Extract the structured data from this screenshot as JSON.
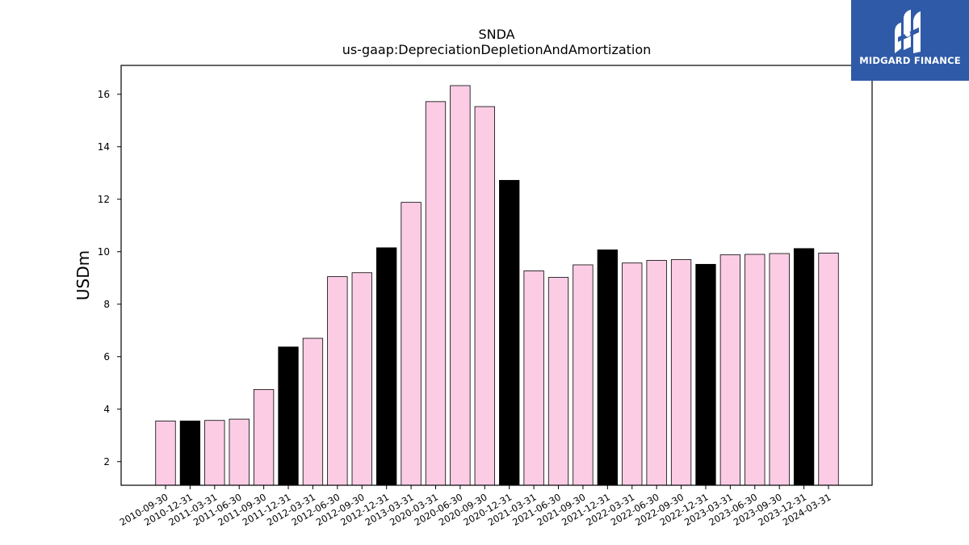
{
  "chart_data": {
    "type": "bar",
    "title": "SNDA",
    "subtitle": "us-gaap:DepreciationDepletionAndAmortization",
    "ylabel": "USDm",
    "xlabel": "",
    "ylim": [
      1.1,
      17.1
    ],
    "yticks": [
      2,
      4,
      6,
      8,
      10,
      12,
      14,
      16
    ],
    "categories": [
      "2010-09-30",
      "2010-12-31",
      "2011-03-31",
      "2011-06-30",
      "2011-09-30",
      "2011-12-31",
      "2012-03-31",
      "2012-06-30",
      "2012-09-30",
      "2012-12-31",
      "2013-03-31",
      "2020-03-31",
      "2020-06-30",
      "2020-09-30",
      "2020-12-31",
      "2021-03-31",
      "2021-06-30",
      "2021-09-30",
      "2021-12-31",
      "2022-03-31",
      "2022-06-30",
      "2022-09-30",
      "2022-12-31",
      "2023-03-31",
      "2023-06-30",
      "2023-09-30",
      "2023-12-31",
      "2024-03-31"
    ],
    "values": [
      3.55,
      3.55,
      3.57,
      3.62,
      4.75,
      6.37,
      6.7,
      9.05,
      9.2,
      10.15,
      11.88,
      15.72,
      16.33,
      15.53,
      12.72,
      9.27,
      9.02,
      9.5,
      10.07,
      9.57,
      9.67,
      9.7,
      9.52,
      9.88,
      9.9,
      9.93,
      10.12,
      9.95
    ],
    "highlight": [
      false,
      true,
      false,
      false,
      false,
      true,
      false,
      false,
      false,
      true,
      false,
      false,
      false,
      false,
      true,
      false,
      false,
      false,
      true,
      false,
      false,
      false,
      true,
      false,
      false,
      false,
      true,
      false
    ],
    "colors": {
      "bar": "#fccce5",
      "highlight": "#000000",
      "edge": "#000000"
    },
    "grid": false
  },
  "logo": {
    "text": "MIDGARD FINANCE",
    "color": "#2f5aa8"
  }
}
